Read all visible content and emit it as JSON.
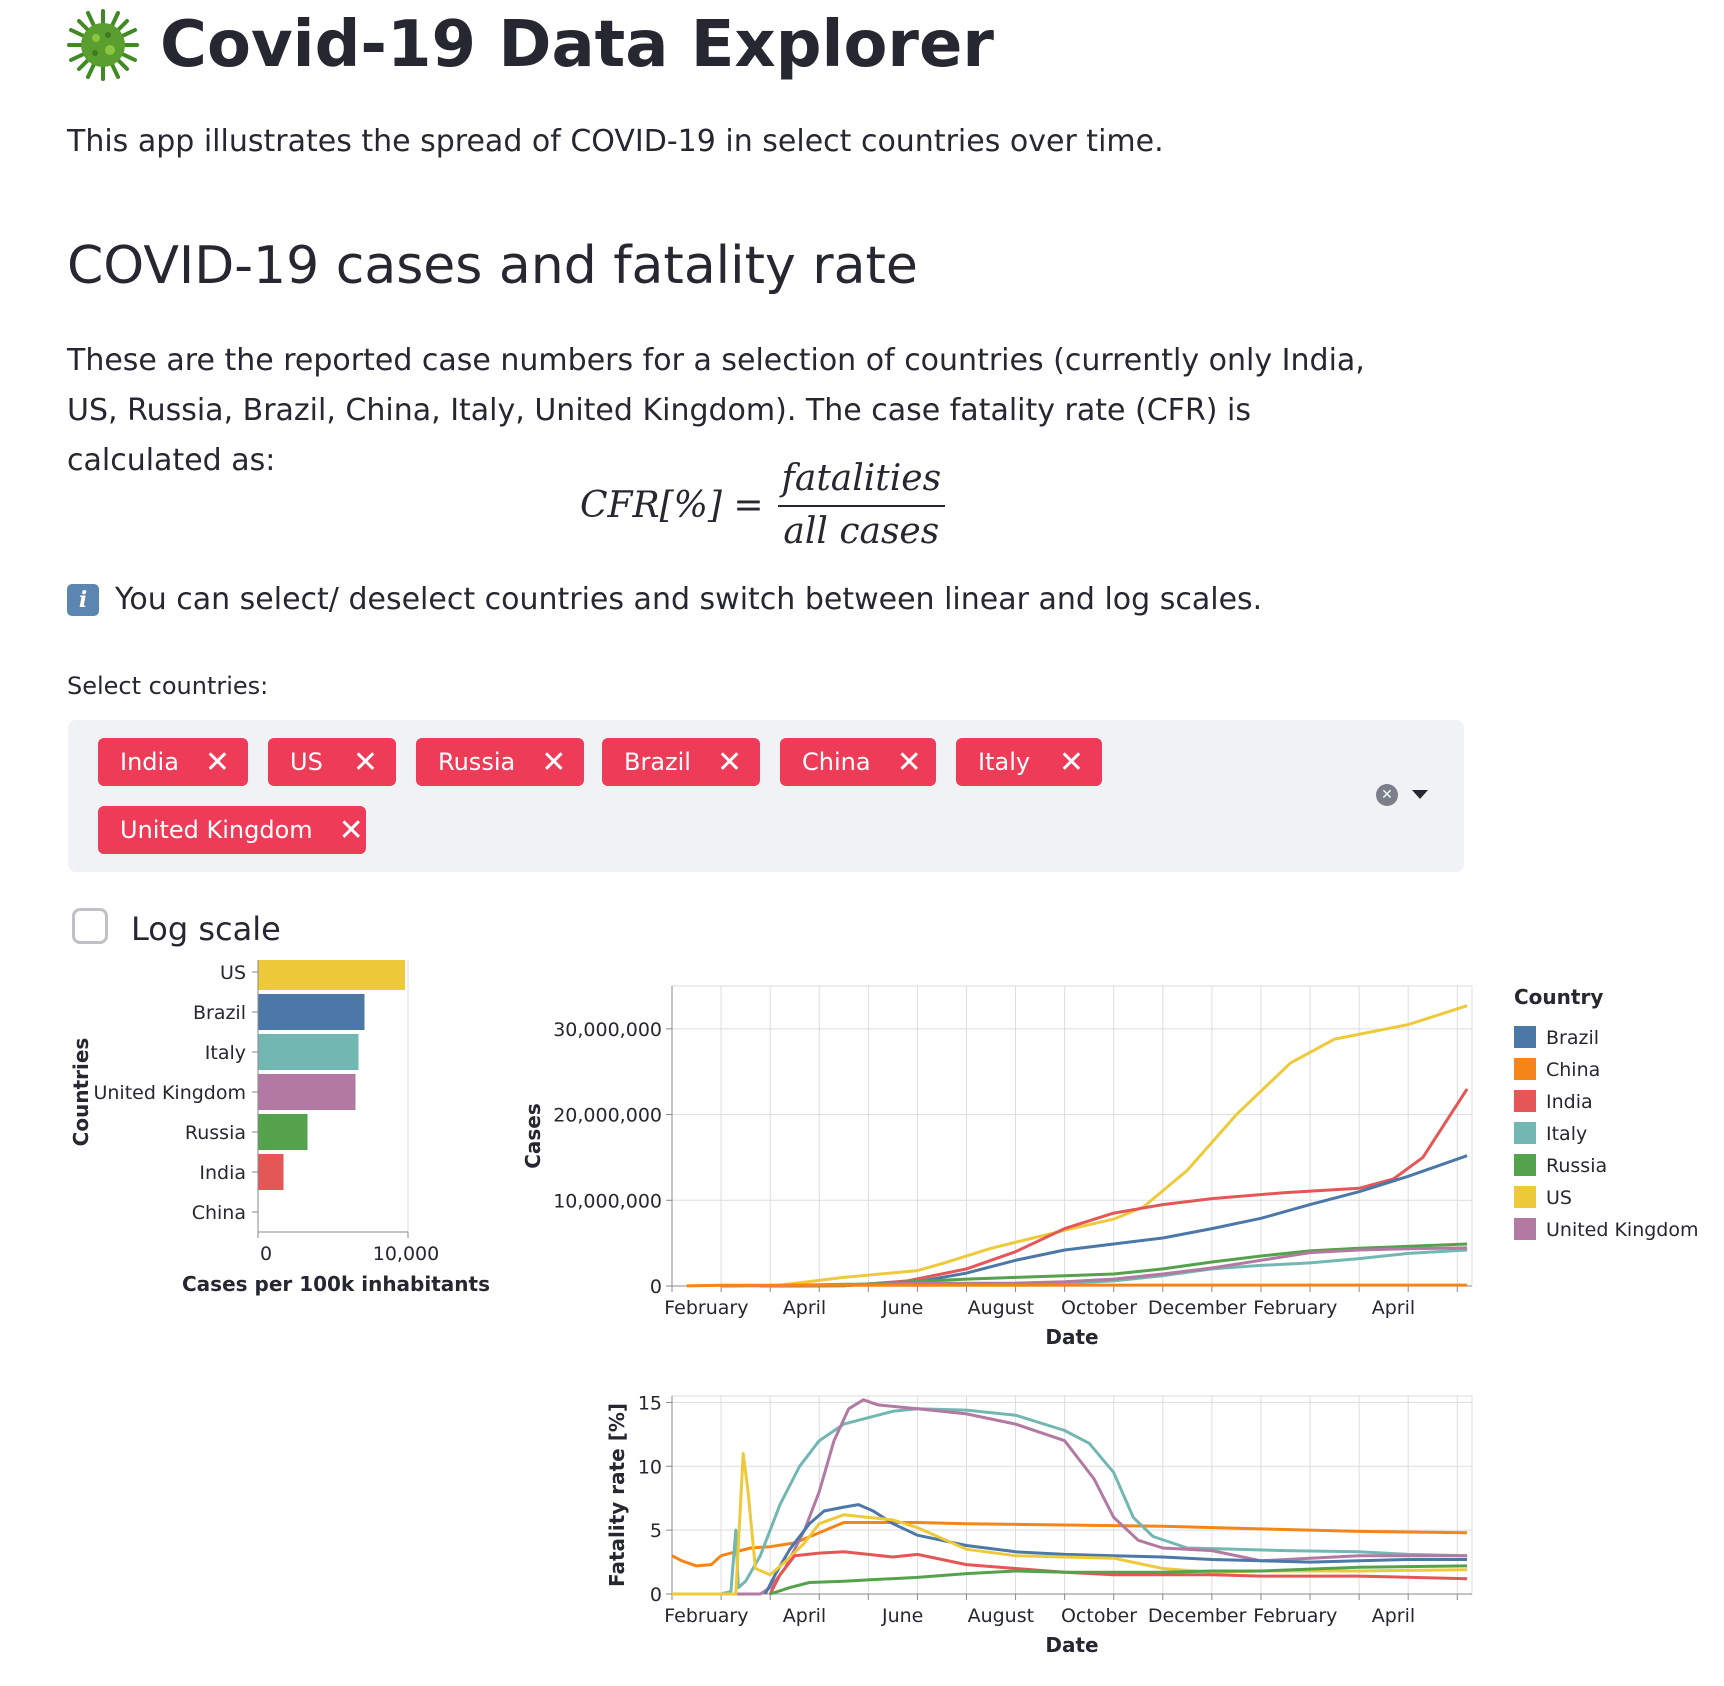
{
  "header": {
    "title": "Covid-19 Data Explorer",
    "intro": "This app illustrates the spread of COVID-19 in select countries over time."
  },
  "section": {
    "heading": "COVID-19 cases and fatality rate",
    "paragraph": "These are the reported case numbers for a selection of countries (currently only India, US, Russia, Brazil, China, Italy, United Kingdom). The case fatality rate (CFR) is calculated as:",
    "formula_lhs": "CFR[%] =",
    "formula_numerator": "fatalities",
    "formula_denominator": "all cases",
    "info_text": "You can select/ deselect countries and switch between linear and log scales."
  },
  "controls": {
    "select_label": "Select countries:",
    "selected_countries": [
      "India",
      "US",
      "Russia",
      "Brazil",
      "China",
      "Italy",
      "United Kingdom"
    ],
    "log_scale_label": "Log scale",
    "log_scale_checked": false
  },
  "colors": {
    "Brazil": "#4c78a8",
    "China": "#f58518",
    "India": "#e45756",
    "Italy": "#72b7b2",
    "Russia": "#54a24b",
    "US": "#eeca3b",
    "United Kingdom": "#b279a2",
    "tag_bg": "#ee3b57",
    "accent": "#ee3b57"
  },
  "chart_data": [
    {
      "type": "bar",
      "orientation": "horizontal",
      "categories": [
        "US",
        "Brazil",
        "Italy",
        "United Kingdom",
        "Russia",
        "India",
        "China"
      ],
      "values": [
        9800,
        7100,
        6700,
        6500,
        3300,
        1700,
        10
      ],
      "xlabel": "Cases per 100k inhabitants",
      "ylabel": "Countries",
      "xlim": [
        0,
        10000
      ],
      "x_ticks": [
        0,
        10000
      ],
      "x_tick_labels": [
        "0",
        "10,000"
      ]
    },
    {
      "type": "line",
      "xlabel": "Date",
      "ylabel": "Cases",
      "x_tick_labels": [
        "February",
        "April",
        "June",
        "August",
        "October",
        "December",
        "February",
        "April"
      ],
      "y_ticks": [
        0,
        10000000,
        20000000,
        30000000
      ],
      "y_tick_labels": [
        "0",
        "10,000,000",
        "20,000,000",
        "30,000,000"
      ],
      "ylim": [
        0,
        35000000
      ],
      "x_range_months": [
        0,
        16.3
      ],
      "legend_title": "Country",
      "legend_placement": "right",
      "legend": [
        "Brazil",
        "China",
        "India",
        "Italy",
        "Russia",
        "US",
        "United Kingdom"
      ],
      "series": [
        {
          "name": "US",
          "points": [
            [
              1.7,
              0
            ],
            [
              2.2,
              100000
            ],
            [
              3.5,
              1000000
            ],
            [
              5.0,
              1800000
            ],
            [
              5.5,
              2600000
            ],
            [
              6.5,
              4400000
            ],
            [
              8.0,
              6500000
            ],
            [
              9.0,
              7800000
            ],
            [
              9.6,
              9200000
            ],
            [
              10.5,
              13500000
            ],
            [
              11.5,
              20000000
            ],
            [
              12.6,
              26000000
            ],
            [
              13.5,
              28800000
            ],
            [
              15.0,
              30500000
            ],
            [
              16.2,
              32700000
            ]
          ]
        },
        {
          "name": "India",
          "points": [
            [
              2.0,
              0
            ],
            [
              3.5,
              20000
            ],
            [
              4.8,
              600000
            ],
            [
              6.0,
              2000000
            ],
            [
              7.0,
              4000000
            ],
            [
              8.0,
              6700000
            ],
            [
              9.0,
              8500000
            ],
            [
              10.0,
              9500000
            ],
            [
              11.0,
              10200000
            ],
            [
              12.5,
              10900000
            ],
            [
              14.0,
              11400000
            ],
            [
              14.7,
              12500000
            ],
            [
              15.3,
              15000000
            ],
            [
              16.2,
              23000000
            ]
          ]
        },
        {
          "name": "Brazil",
          "points": [
            [
              2.0,
              0
            ],
            [
              3.5,
              50000
            ],
            [
              5.0,
              500000
            ],
            [
              6.0,
              1500000
            ],
            [
              7.0,
              3000000
            ],
            [
              8.0,
              4200000
            ],
            [
              9.0,
              4900000
            ],
            [
              10.0,
              5600000
            ],
            [
              11.0,
              6700000
            ],
            [
              12.0,
              7900000
            ],
            [
              13.0,
              9500000
            ],
            [
              14.0,
              11000000
            ],
            [
              15.0,
              12800000
            ],
            [
              16.2,
              15200000
            ]
          ]
        },
        {
          "name": "Russia",
          "points": [
            [
              1.8,
              0
            ],
            [
              3.5,
              100000
            ],
            [
              4.5,
              400000
            ],
            [
              6.0,
              800000
            ],
            [
              7.0,
              1000000
            ],
            [
              8.0,
              1200000
            ],
            [
              9.0,
              1400000
            ],
            [
              10.0,
              2000000
            ],
            [
              11.0,
              2800000
            ],
            [
              12.0,
              3500000
            ],
            [
              13.0,
              4100000
            ],
            [
              14.0,
              4400000
            ],
            [
              16.2,
              4900000
            ]
          ]
        },
        {
          "name": "Italy",
          "points": [
            [
              1.0,
              0
            ],
            [
              2.5,
              100000
            ],
            [
              3.5,
              200000
            ],
            [
              6.0,
              250000
            ],
            [
              8.0,
              300000
            ],
            [
              9.0,
              600000
            ],
            [
              10.0,
              1200000
            ],
            [
              11.0,
              2000000
            ],
            [
              12.0,
              2400000
            ],
            [
              13.0,
              2700000
            ],
            [
              14.0,
              3200000
            ],
            [
              15.0,
              3800000
            ],
            [
              16.2,
              4200000
            ]
          ]
        },
        {
          "name": "United Kingdom",
          "points": [
            [
              1.0,
              0
            ],
            [
              3.0,
              100000
            ],
            [
              5.0,
              300000
            ],
            [
              7.0,
              340000
            ],
            [
              8.0,
              500000
            ],
            [
              9.0,
              800000
            ],
            [
              10.0,
              1400000
            ],
            [
              11.0,
              2100000
            ],
            [
              12.0,
              3000000
            ],
            [
              13.0,
              3900000
            ],
            [
              14.0,
              4200000
            ],
            [
              15.0,
              4350000
            ],
            [
              16.2,
              4450000
            ]
          ]
        },
        {
          "name": "China",
          "points": [
            [
              0.3,
              10000
            ],
            [
              1.0,
              80000
            ],
            [
              16.2,
              100000
            ]
          ]
        }
      ]
    },
    {
      "type": "line",
      "xlabel": "Date",
      "ylabel": "Fatality rate [%]",
      "x_tick_labels": [
        "February",
        "April",
        "June",
        "August",
        "October",
        "December",
        "February",
        "April"
      ],
      "y_ticks": [
        0,
        5,
        10,
        15
      ],
      "y_tick_labels": [
        "0",
        "5",
        "10",
        "15"
      ],
      "ylim": [
        0,
        15.5
      ],
      "x_range_months": [
        0,
        16.3
      ],
      "series": [
        {
          "name": "China",
          "points": [
            [
              0.0,
              3.0
            ],
            [
              0.2,
              2.6
            ],
            [
              0.5,
              2.2
            ],
            [
              0.8,
              2.3
            ],
            [
              1.0,
              3.0
            ],
            [
              1.3,
              3.3
            ],
            [
              1.6,
              3.6
            ],
            [
              2.0,
              3.7
            ],
            [
              2.5,
              4.0
            ],
            [
              3.0,
              4.8
            ],
            [
              3.5,
              5.6
            ],
            [
              5.0,
              5.6
            ],
            [
              6.0,
              5.5
            ],
            [
              8.0,
              5.4
            ],
            [
              10.0,
              5.3
            ],
            [
              12.0,
              5.1
            ],
            [
              14.0,
              4.9
            ],
            [
              16.2,
              4.8
            ]
          ]
        },
        {
          "name": "Italy",
          "points": [
            [
              1.0,
              0
            ],
            [
              1.2,
              0.2
            ],
            [
              1.3,
              5.0
            ],
            [
              1.35,
              0.5
            ],
            [
              1.5,
              1.0
            ],
            [
              1.8,
              3.0
            ],
            [
              2.2,
              7.0
            ],
            [
              2.6,
              10.0
            ],
            [
              3.0,
              12.0
            ],
            [
              3.5,
              13.3
            ],
            [
              4.0,
              13.8
            ],
            [
              4.5,
              14.3
            ],
            [
              5.0,
              14.5
            ],
            [
              6.0,
              14.4
            ],
            [
              7.0,
              14.0
            ],
            [
              8.0,
              12.8
            ],
            [
              8.5,
              11.8
            ],
            [
              9.0,
              9.5
            ],
            [
              9.4,
              6.0
            ],
            [
              9.8,
              4.5
            ],
            [
              10.5,
              3.6
            ],
            [
              11.5,
              3.5
            ],
            [
              12.5,
              3.4
            ],
            [
              14.0,
              3.3
            ],
            [
              15.0,
              3.1
            ],
            [
              16.2,
              3.0
            ]
          ]
        },
        {
          "name": "United Kingdom",
          "points": [
            [
              1.0,
              0
            ],
            [
              1.8,
              0
            ],
            [
              2.0,
              0.5
            ],
            [
              2.3,
              2.0
            ],
            [
              2.7,
              5.0
            ],
            [
              3.0,
              8.0
            ],
            [
              3.3,
              12.0
            ],
            [
              3.6,
              14.5
            ],
            [
              3.9,
              15.2
            ],
            [
              4.2,
              14.8
            ],
            [
              5.0,
              14.5
            ],
            [
              6.0,
              14.1
            ],
            [
              7.0,
              13.3
            ],
            [
              8.0,
              12.0
            ],
            [
              8.6,
              9.0
            ],
            [
              9.0,
              6.0
            ],
            [
              9.5,
              4.2
            ],
            [
              10.0,
              3.6
            ],
            [
              11.0,
              3.4
            ],
            [
              12.0,
              2.6
            ],
            [
              13.0,
              2.8
            ],
            [
              14.0,
              3.0
            ],
            [
              16.2,
              3.0
            ]
          ]
        },
        {
          "name": "Brazil",
          "points": [
            [
              1.9,
              0
            ],
            [
              2.1,
              1.5
            ],
            [
              2.4,
              3.5
            ],
            [
              2.8,
              5.5
            ],
            [
              3.1,
              6.5
            ],
            [
              3.5,
              6.8
            ],
            [
              3.8,
              7.0
            ],
            [
              4.1,
              6.5
            ],
            [
              4.5,
              5.5
            ],
            [
              5.0,
              4.6
            ],
            [
              6.0,
              3.8
            ],
            [
              7.0,
              3.3
            ],
            [
              8.0,
              3.1
            ],
            [
              9.0,
              3.0
            ],
            [
              10.0,
              2.9
            ],
            [
              11.0,
              2.7
            ],
            [
              12.0,
              2.6
            ],
            [
              13.0,
              2.5
            ],
            [
              14.0,
              2.6
            ],
            [
              15.0,
              2.7
            ],
            [
              16.2,
              2.7
            ]
          ]
        },
        {
          "name": "US",
          "points": [
            [
              0,
              0
            ],
            [
              1.0,
              0
            ],
            [
              1.3,
              0
            ],
            [
              1.45,
              11.0
            ],
            [
              1.55,
              8.0
            ],
            [
              1.7,
              2.0
            ],
            [
              2.0,
              1.5
            ],
            [
              2.3,
              2.5
            ],
            [
              2.7,
              4.0
            ],
            [
              3.0,
              5.5
            ],
            [
              3.5,
              6.2
            ],
            [
              4.0,
              6.0
            ],
            [
              4.5,
              5.8
            ],
            [
              5.0,
              5.2
            ],
            [
              6.0,
              3.5
            ],
            [
              7.0,
              3.0
            ],
            [
              8.0,
              2.9
            ],
            [
              9.0,
              2.8
            ],
            [
              10.0,
              2.0
            ],
            [
              11.0,
              1.7
            ],
            [
              12.0,
              1.8
            ],
            [
              14.0,
              1.8
            ],
            [
              16.2,
              1.9
            ]
          ]
        },
        {
          "name": "India",
          "points": [
            [
              2.0,
              0
            ],
            [
              2.2,
              1.5
            ],
            [
              2.5,
              3.0
            ],
            [
              3.0,
              3.2
            ],
            [
              3.5,
              3.3
            ],
            [
              4.0,
              3.1
            ],
            [
              4.5,
              2.9
            ],
            [
              5.0,
              3.1
            ],
            [
              5.5,
              2.7
            ],
            [
              6.0,
              2.3
            ],
            [
              7.0,
              2.0
            ],
            [
              8.0,
              1.7
            ],
            [
              9.0,
              1.5
            ],
            [
              10.0,
              1.5
            ],
            [
              11.0,
              1.5
            ],
            [
              12.0,
              1.4
            ],
            [
              14.0,
              1.4
            ],
            [
              16.2,
              1.2
            ]
          ]
        },
        {
          "name": "Russia",
          "points": [
            [
              2.0,
              0
            ],
            [
              2.4,
              0.5
            ],
            [
              2.8,
              0.9
            ],
            [
              3.5,
              1.0
            ],
            [
              4.0,
              1.1
            ],
            [
              5.0,
              1.3
            ],
            [
              6.0,
              1.6
            ],
            [
              7.0,
              1.8
            ],
            [
              8.0,
              1.7
            ],
            [
              9.0,
              1.7
            ],
            [
              10.0,
              1.7
            ],
            [
              11.0,
              1.8
            ],
            [
              12.0,
              1.8
            ],
            [
              14.0,
              2.1
            ],
            [
              16.2,
              2.2
            ]
          ]
        }
      ]
    }
  ]
}
